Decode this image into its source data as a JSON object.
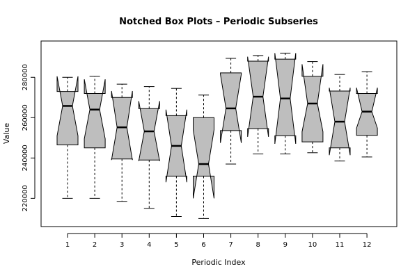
{
  "chart_data": {
    "type": "notched-boxplot",
    "title": "Notched Box Plots – Periodic Subseries",
    "xlabel": "Periodic Index",
    "ylabel": "Value",
    "categories": [
      "1",
      "2",
      "3",
      "4",
      "5",
      "6",
      "7",
      "8",
      "9",
      "10",
      "11",
      "12"
    ],
    "ylim": [
      206000,
      298000
    ],
    "yticks": [
      220000,
      240000,
      260000,
      280000
    ],
    "ytick_labels": [
      "220000",
      "240000",
      "260000",
      "280000"
    ],
    "box_fill": "#bebebe",
    "grid": false,
    "boxes": [
      {
        "min": 220000,
        "q1": 246500,
        "median": 265800,
        "q3": 273000,
        "max": 280000,
        "notch_low": 251000,
        "notch_high": 280500
      },
      {
        "min": 220000,
        "q1": 245000,
        "median": 264000,
        "q3": 272000,
        "max": 280500,
        "notch_low": 249500,
        "notch_high": 279000
      },
      {
        "min": 218500,
        "q1": 239500,
        "median": 255200,
        "q3": 270000,
        "max": 276600,
        "notch_low": 239000,
        "notch_high": 273200
      },
      {
        "min": 215000,
        "q1": 239000,
        "median": 253200,
        "q3": 264500,
        "max": 275400,
        "notch_low": 238500,
        "notch_high": 268200
      },
      {
        "min": 211000,
        "q1": 231000,
        "median": 246000,
        "q3": 261000,
        "max": 274500,
        "notch_low": 228000,
        "notch_high": 264000
      },
      {
        "min": 210000,
        "q1": 231000,
        "median": 237000,
        "q3": 260000,
        "max": 271200,
        "notch_low": 220000,
        "notch_high": 254000
      },
      {
        "min": 237000,
        "q1": 253600,
        "median": 264600,
        "q3": 282200,
        "max": 289400,
        "notch_low": 247500,
        "notch_high": 281500
      },
      {
        "min": 242000,
        "q1": 254600,
        "median": 270400,
        "q3": 288000,
        "max": 290800,
        "notch_low": 250500,
        "notch_high": 290200
      },
      {
        "min": 242000,
        "q1": 251000,
        "median": 269500,
        "q3": 289000,
        "max": 292000,
        "notch_low": 247000,
        "notch_high": 292000
      },
      {
        "min": 242600,
        "q1": 248000,
        "median": 267000,
        "q3": 280500,
        "max": 287800,
        "notch_low": 253000,
        "notch_high": 286500
      },
      {
        "min": 238500,
        "q1": 245000,
        "median": 258000,
        "q3": 273200,
        "max": 281400,
        "notch_low": 241400,
        "notch_high": 274800
      },
      {
        "min": 240500,
        "q1": 251200,
        "median": 263000,
        "q3": 272000,
        "max": 282800,
        "notch_low": 254800,
        "notch_high": 274800
      }
    ]
  }
}
